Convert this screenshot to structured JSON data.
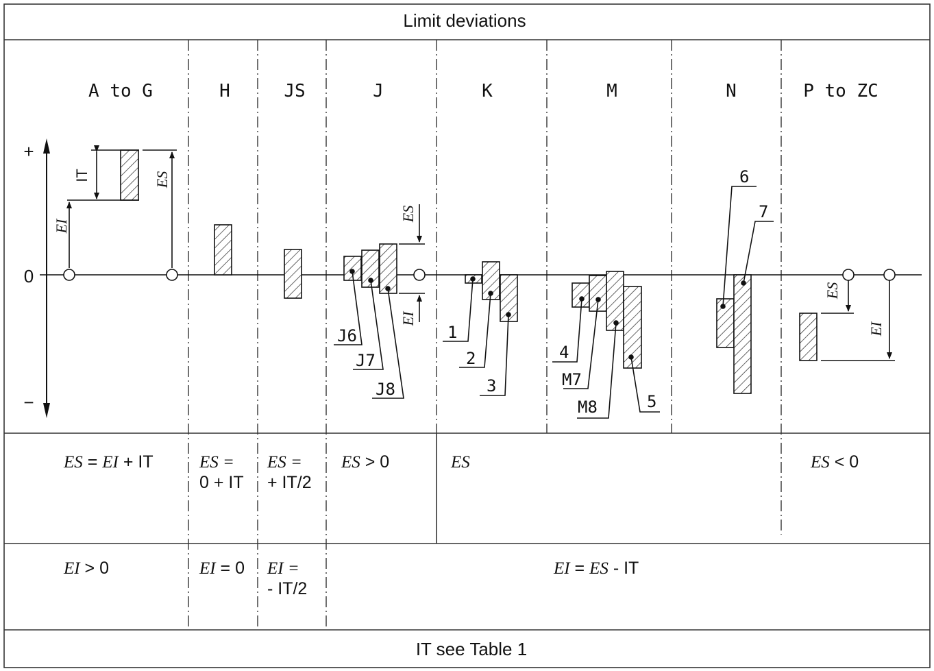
{
  "title": "Limit deviations",
  "footer": "IT see Table 1",
  "columns": [
    {
      "id": "a-to-g",
      "label": "A to G"
    },
    {
      "id": "h",
      "label": "H"
    },
    {
      "id": "js",
      "label": "JS"
    },
    {
      "id": "j",
      "label": "J"
    },
    {
      "id": "k",
      "label": "K"
    },
    {
      "id": "m",
      "label": "M"
    },
    {
      "id": "n",
      "label": "N"
    },
    {
      "id": "p-to-zc",
      "label": "P to ZC"
    }
  ],
  "axis": {
    "plus": "+",
    "zero": "0",
    "minus": "−"
  },
  "dimension_labels": {
    "it": "IT",
    "es": "ES",
    "ei": "EI"
  },
  "callouts": {
    "j6": "J6",
    "j7": "J7",
    "j8": "J8",
    "n1": "1",
    "n2": "2",
    "n3": "3",
    "n4": "4",
    "m7": "M7",
    "m8": "M8",
    "n5": "5",
    "n6": "6",
    "n7": "7"
  },
  "es_row": {
    "a_to_g": {
      "ital1": "ES",
      "t1": " = ",
      "ital2": "EI",
      "t2": " + IT"
    },
    "h": {
      "ital": "ES",
      "line1": " =",
      "line2": "0 + IT"
    },
    "js": {
      "ital": "ES",
      "line1": " =",
      "line2": "+ IT/2"
    },
    "j": {
      "ital": "ES",
      "rest": " > 0"
    },
    "k": {
      "ital": "ES"
    },
    "p_to_zc": {
      "ital": "ES",
      "rest": " < 0"
    }
  },
  "ei_row": {
    "a_to_g": {
      "ital": "EI",
      "rest": " > 0"
    },
    "h": {
      "ital": "EI",
      "rest": " = 0"
    },
    "js": {
      "ital": "EI",
      "line1": " =",
      "line2": "- IT/2"
    },
    "rest": {
      "ital1": "EI",
      "t1": " = ",
      "ital2": "ES",
      "t2": " - IT"
    }
  }
}
